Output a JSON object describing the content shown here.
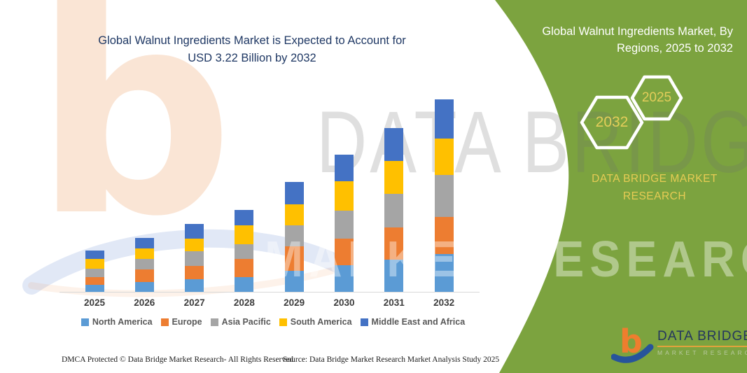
{
  "page": {
    "background": "#ffffff",
    "accent_green": "#7CA33F",
    "title_navy": "#1F3864",
    "accent_yellow": "#E7CC54"
  },
  "main_title": {
    "line1": "Global Walnut Ingredients Market is Expected to Account for",
    "line2": "USD 3.22 Billion by 2032"
  },
  "side_panel": {
    "title_line1": "Global Walnut Ingredients Market, By",
    "title_line2": "Regions, 2025 to 2032",
    "hexagons": [
      {
        "label": "2032"
      },
      {
        "label": "2025"
      }
    ],
    "brand_line1": "DATA BRIDGE MARKET",
    "brand_line2": "RESEARCH"
  },
  "chart_data": {
    "type": "bar",
    "stacked": true,
    "title": "Global Walnut Ingredients Market, By Regions, 2025 to 2032",
    "unit": "USD Billion",
    "categories": [
      "2025",
      "2026",
      "2027",
      "2028",
      "2029",
      "2030",
      "2031",
      "2032"
    ],
    "series": [
      {
        "name": "North America",
        "color": "#5B9BD5",
        "values": [
          0.12,
          0.16,
          0.21,
          0.25,
          0.35,
          0.45,
          0.54,
          0.63
        ]
      },
      {
        "name": "Europe",
        "color": "#ED7D31",
        "values": [
          0.13,
          0.21,
          0.22,
          0.3,
          0.41,
          0.45,
          0.54,
          0.62
        ]
      },
      {
        "name": "Asia Pacific",
        "color": "#A5A5A5",
        "values": [
          0.14,
          0.18,
          0.25,
          0.25,
          0.35,
          0.47,
          0.56,
          0.7
        ]
      },
      {
        "name": "South America",
        "color": "#FFC000",
        "values": [
          0.16,
          0.18,
          0.21,
          0.31,
          0.35,
          0.49,
          0.55,
          0.61
        ]
      },
      {
        "name": "Middle East and Africa",
        "color": "#4472C4",
        "values": [
          0.14,
          0.18,
          0.25,
          0.26,
          0.38,
          0.45,
          0.55,
          0.65
        ]
      }
    ],
    "annotations": [
      "Total market expected to reach USD 3.22 Billion by 2032"
    ],
    "ylim": [
      0,
      3.5
    ],
    "gridlines": false,
    "legend_position": "bottom"
  },
  "watermark": {
    "letters": "DATA BRIDGE",
    "sub_letters": "MARKET RESEARCH",
    "logo_letter": "b"
  },
  "logo": {
    "name": "DATA BRIDGE",
    "sub": "MARKET RESEARCH"
  },
  "footer": {
    "left": "DMCA Protected © Data Bridge Market Research-  All Rights Reserved.",
    "right": "Source: Data Bridge Market Research  Market Analysis Study 2025"
  }
}
